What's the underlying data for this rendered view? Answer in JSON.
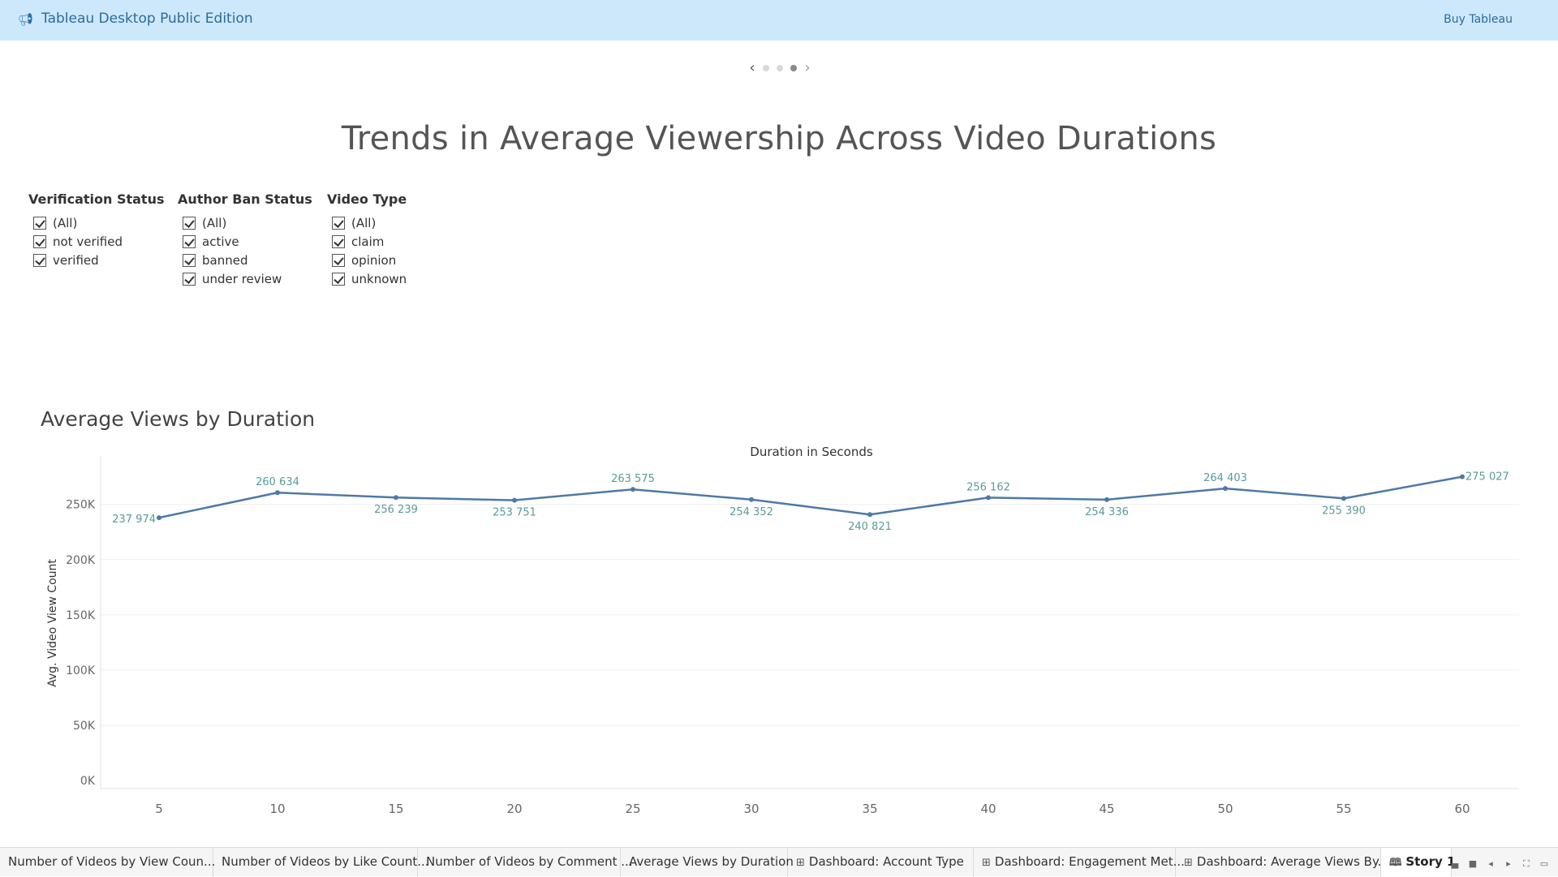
{
  "topbar": {
    "title": "Tableau Desktop Public Edition",
    "buy_label": "Buy Tableau",
    "icon": "megaphone-icon"
  },
  "story": {
    "title": "Trends in Average Viewership Across Video Durations",
    "dots": 3,
    "active_dot": 2
  },
  "filters": [
    {
      "title": "Verification Status",
      "items": [
        "(All)",
        "not verified",
        "verified"
      ]
    },
    {
      "title": "Author Ban Status",
      "items": [
        "(All)",
        "active",
        "banned",
        "under review"
      ]
    },
    {
      "title": "Video Type",
      "items": [
        "(All)",
        "claim",
        "opinion",
        "unknown"
      ]
    }
  ],
  "chart": {
    "title": "Average Views by Duration"
  },
  "chart_data": {
    "type": "line",
    "title": "Average Views by Duration",
    "xlabel": "Duration in Seconds",
    "ylabel": "Avg. Video View Count",
    "x": [
      5,
      10,
      15,
      20,
      25,
      30,
      35,
      40,
      45,
      50,
      55,
      60
    ],
    "values": [
      237974,
      260634,
      256239,
      253751,
      263575,
      254352,
      240821,
      256162,
      254336,
      264403,
      255390,
      275027
    ],
    "labels": [
      "237 974",
      "260 634",
      "256 239",
      "253 751",
      "263 575",
      "254 352",
      "240 821",
      "256 162",
      "254 336",
      "264 403",
      "255 390",
      "275 027"
    ],
    "yticks": [
      "0K",
      "50K",
      "100K",
      "150K",
      "200K",
      "250K"
    ],
    "ytick_values": [
      0,
      50000,
      100000,
      150000,
      200000,
      250000
    ],
    "ylim": [
      0,
      288000
    ],
    "grid": true,
    "line_color": "#4e79a7",
    "label_color": "#5a9a9a"
  },
  "tabs": [
    {
      "label": "Number of Videos by View Coun...",
      "icon": ""
    },
    {
      "label": "Number of Videos by Like Count...",
      "icon": ""
    },
    {
      "label": "Number of Videos by Comment ...",
      "icon": ""
    },
    {
      "label": "Average Views by Duration",
      "icon": ""
    },
    {
      "label": "Dashboard: Account Type",
      "icon": "dashboard-icon"
    },
    {
      "label": "Dashboard: Engagement Met...",
      "icon": "dashboard-icon"
    },
    {
      "label": "Dashboard: Average Views By...",
      "icon": "dashboard-icon"
    },
    {
      "label": "Story 1",
      "icon": "story-icon",
      "active": true
    }
  ]
}
